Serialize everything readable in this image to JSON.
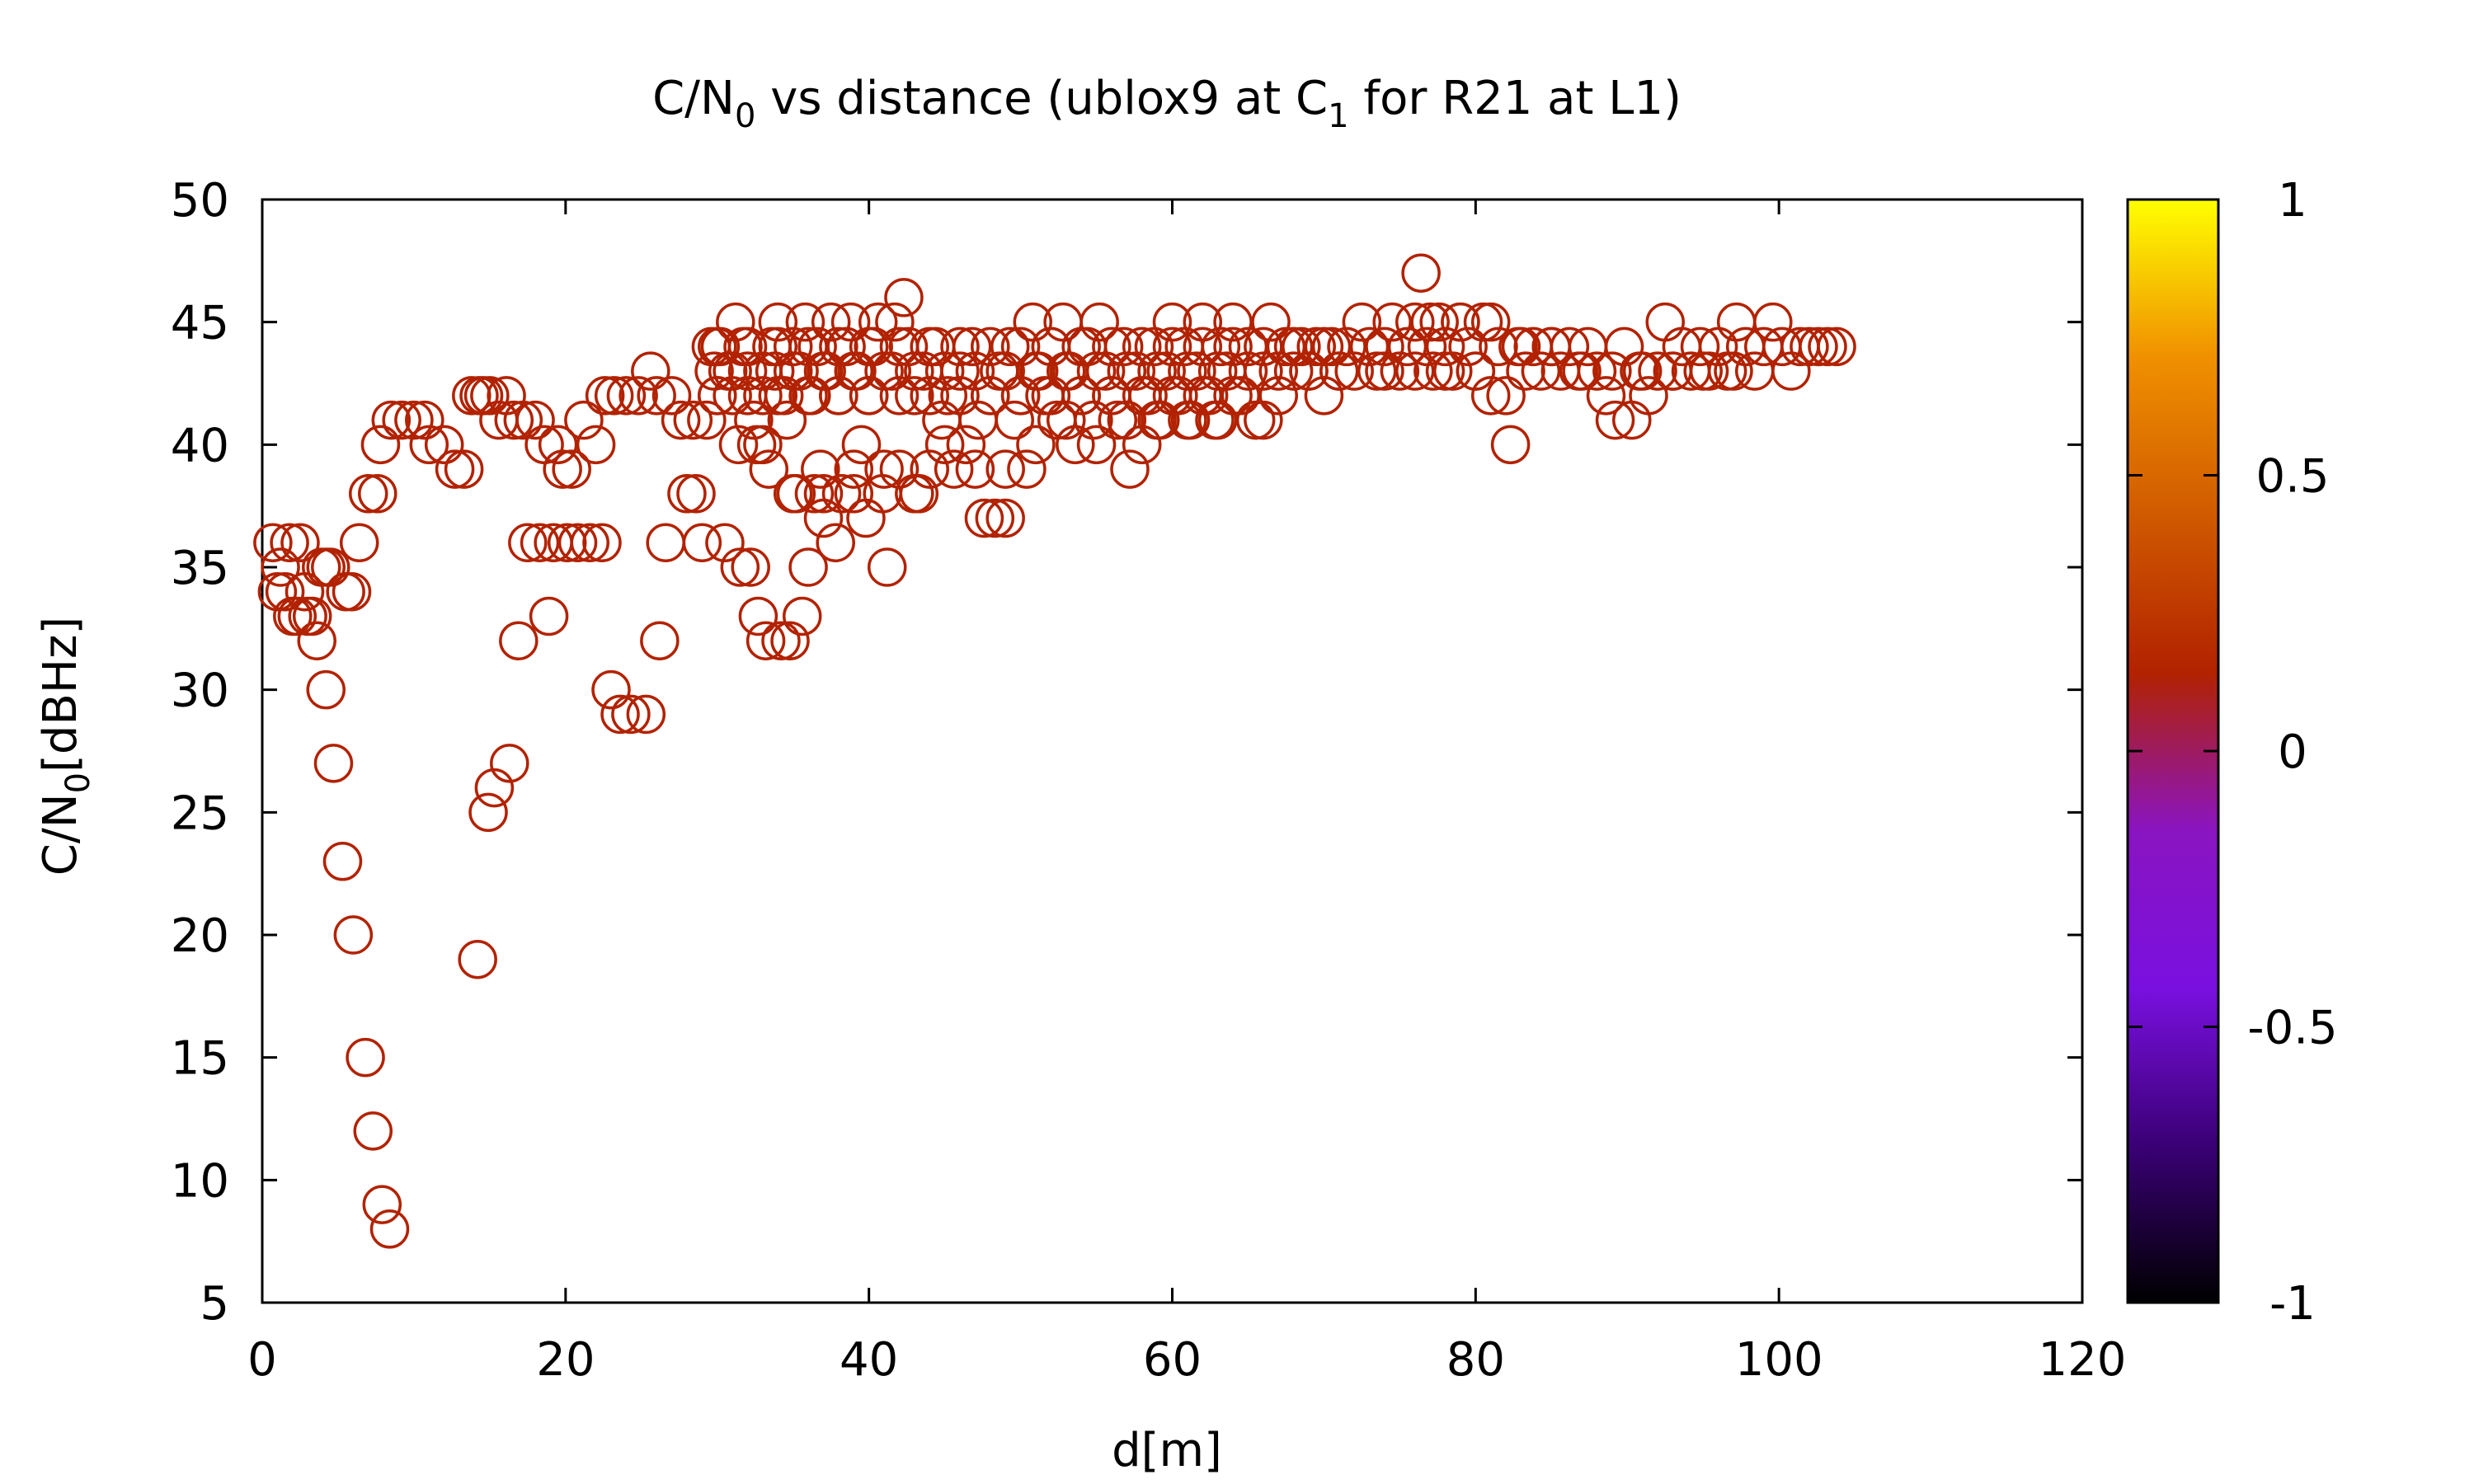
{
  "chart_data": {
    "type": "scatter",
    "title": {
      "main": "C/N",
      "sub0": "0",
      "mid": " vs distance (ublox9 at C",
      "sub1": "1",
      "end": " for R21 at L1)"
    },
    "xlabel": "d[m]",
    "ylabel": {
      "main": "C/N",
      "sub": "0",
      "end": "[dBHz]"
    },
    "xlim": [
      0,
      120
    ],
    "ylim": [
      5,
      50
    ],
    "xticks": [
      "0",
      "20",
      "40",
      "60",
      "80",
      "100",
      "120"
    ],
    "yticks": [
      "5",
      "10",
      "15",
      "20",
      "25",
      "30",
      "35",
      "40",
      "45",
      "50"
    ],
    "marker": "open-circle",
    "marker_color": "#b22200",
    "colorbar": {
      "range": [
        -1,
        1
      ],
      "ticks": [
        "-1",
        "-0.5",
        "0",
        "0.5",
        "1"
      ],
      "stops": [
        "#000000",
        "#3a0076",
        "#7a10e0",
        "#8a14c0",
        "#b22200",
        "#d05a00",
        "#f09000",
        "#ffff00"
      ]
    },
    "points": [
      [
        0.7,
        36
      ],
      [
        1.0,
        34
      ],
      [
        1.2,
        35
      ],
      [
        1.5,
        34
      ],
      [
        1.8,
        36
      ],
      [
        2.0,
        33
      ],
      [
        2.3,
        33
      ],
      [
        2.5,
        36
      ],
      [
        2.8,
        34
      ],
      [
        3.0,
        33
      ],
      [
        3.3,
        33
      ],
      [
        3.6,
        32
      ],
      [
        3.9,
        35
      ],
      [
        4.2,
        35
      ],
      [
        4.5,
        35
      ],
      [
        4.2,
        30
      ],
      [
        4.7,
        27
      ],
      [
        5.3,
        23
      ],
      [
        5.5,
        34
      ],
      [
        5.9,
        34
      ],
      [
        6.0,
        20
      ],
      [
        6.4,
        36
      ],
      [
        6.8,
        15
      ],
      [
        7.0,
        38
      ],
      [
        7.3,
        12
      ],
      [
        7.6,
        38
      ],
      [
        7.8,
        40
      ],
      [
        7.9,
        9
      ],
      [
        8.4,
        8
      ],
      [
        8.5,
        41
      ],
      [
        9.2,
        41
      ],
      [
        10,
        41
      ],
      [
        10.7,
        41
      ],
      [
        11,
        40
      ],
      [
        12,
        40
      ],
      [
        12.7,
        39
      ],
      [
        13.3,
        39
      ],
      [
        13.8,
        42
      ],
      [
        14.3,
        42
      ],
      [
        14.2,
        19
      ],
      [
        14.6,
        42
      ],
      [
        15.0,
        42
      ],
      [
        14.9,
        25
      ],
      [
        15.3,
        26
      ],
      [
        15.6,
        41
      ],
      [
        16.1,
        42
      ],
      [
        16.3,
        27
      ],
      [
        16.6,
        41
      ],
      [
        16.9,
        32
      ],
      [
        17.2,
        41
      ],
      [
        17.5,
        36
      ],
      [
        18.0,
        41
      ],
      [
        18.3,
        36
      ],
      [
        18.6,
        40
      ],
      [
        18.9,
        33
      ],
      [
        19.2,
        36
      ],
      [
        19.5,
        40
      ],
      [
        19.8,
        39
      ],
      [
        20.1,
        36
      ],
      [
        20.4,
        39
      ],
      [
        20.8,
        36
      ],
      [
        21.2,
        41
      ],
      [
        21.6,
        36
      ],
      [
        22.0,
        40
      ],
      [
        22.4,
        36
      ],
      [
        22.6,
        42
      ],
      [
        23.0,
        30
      ],
      [
        23.2,
        42
      ],
      [
        23.6,
        29
      ],
      [
        24.0,
        42
      ],
      [
        24.3,
        29
      ],
      [
        24.8,
        42
      ],
      [
        25.3,
        29
      ],
      [
        25.6,
        43
      ],
      [
        26.0,
        42
      ],
      [
        26.2,
        32
      ],
      [
        26.6,
        36
      ],
      [
        27.0,
        42
      ],
      [
        27.6,
        41
      ],
      [
        28.0,
        38
      ],
      [
        28.4,
        41
      ],
      [
        28.6,
        38
      ],
      [
        29.0,
        36
      ],
      [
        29.3,
        41
      ],
      [
        29.6,
        44
      ],
      [
        29.8,
        43
      ],
      [
        30.0,
        42
      ],
      [
        30.2,
        44
      ],
      [
        30.5,
        36
      ],
      [
        30.7,
        43
      ],
      [
        31.0,
        42
      ],
      [
        31.2,
        45
      ],
      [
        31.4,
        40
      ],
      [
        31.5,
        35
      ],
      [
        31.7,
        44
      ],
      [
        32.0,
        43
      ],
      [
        32.2,
        35
      ],
      [
        32.4,
        41
      ],
      [
        32.6,
        40
      ],
      [
        32.7,
        33
      ],
      [
        33.0,
        42
      ],
      [
        33.2,
        32
      ],
      [
        33.4,
        39
      ],
      [
        33.6,
        44
      ],
      [
        33.8,
        43
      ],
      [
        34.0,
        45
      ],
      [
        34.2,
        32
      ],
      [
        34.4,
        42
      ],
      [
        34.6,
        41
      ],
      [
        34.8,
        32
      ],
      [
        35.0,
        44
      ],
      [
        35.2,
        38
      ],
      [
        35.4,
        43
      ],
      [
        35.6,
        33
      ],
      [
        35.8,
        45
      ],
      [
        36.0,
        35
      ],
      [
        36.2,
        42
      ],
      [
        36.4,
        38
      ],
      [
        36.6,
        44
      ],
      [
        36.8,
        39
      ],
      [
        37.0,
        37
      ],
      [
        37.2,
        43
      ],
      [
        37.5,
        45
      ],
      [
        37.8,
        36
      ],
      [
        38.0,
        42
      ],
      [
        38.2,
        38
      ],
      [
        38.5,
        44
      ],
      [
        38.8,
        45
      ],
      [
        39.0,
        39
      ],
      [
        39.2,
        43
      ],
      [
        39.5,
        40
      ],
      [
        39.8,
        37
      ],
      [
        40.0,
        42
      ],
      [
        40.3,
        44
      ],
      [
        40.6,
        45
      ],
      [
        40.9,
        38
      ],
      [
        41.2,
        35
      ],
      [
        41.5,
        43
      ],
      [
        41.7,
        45
      ],
      [
        42.0,
        39
      ],
      [
        42.3,
        46
      ],
      [
        42.6,
        44
      ],
      [
        43.0,
        42
      ],
      [
        43.3,
        38
      ],
      [
        43.6,
        43
      ],
      [
        44.0,
        39
      ],
      [
        44.4,
        44
      ],
      [
        44.8,
        41
      ],
      [
        45.2,
        42
      ],
      [
        45.6,
        39
      ],
      [
        46.0,
        43
      ],
      [
        46.4,
        40
      ],
      [
        46.8,
        44
      ],
      [
        47.2,
        41
      ],
      [
        47.6,
        37
      ],
      [
        48.0,
        42
      ],
      [
        48.3,
        37
      ],
      [
        48.6,
        43
      ],
      [
        49.0,
        37
      ],
      [
        49.3,
        44
      ],
      [
        49.6,
        41
      ],
      [
        50.0,
        42
      ],
      [
        50.4,
        39
      ],
      [
        50.8,
        45
      ],
      [
        51.2,
        43
      ],
      [
        51.6,
        42
      ],
      [
        52.0,
        44
      ],
      [
        52.4,
        41
      ],
      [
        52.8,
        45
      ],
      [
        53.2,
        43
      ],
      [
        53.6,
        40
      ],
      [
        54.0,
        42
      ],
      [
        54.4,
        44
      ],
      [
        54.8,
        41
      ],
      [
        55.2,
        45
      ],
      [
        55.6,
        43
      ],
      [
        56.0,
        42
      ],
      [
        56.4,
        41
      ],
      [
        56.8,
        44
      ],
      [
        57.2,
        39
      ],
      [
        57.6,
        43
      ],
      [
        58.0,
        40
      ],
      [
        58.4,
        42
      ],
      [
        58.8,
        44
      ],
      [
        59.2,
        41
      ],
      [
        59.6,
        43
      ],
      [
        60.0,
        45
      ],
      [
        60.4,
        42
      ],
      [
        60.8,
        44
      ],
      [
        61.2,
        41
      ],
      [
        61.6,
        43
      ],
      [
        62.0,
        45
      ],
      [
        62.4,
        42
      ],
      [
        62.8,
        41
      ],
      [
        63.2,
        44
      ],
      [
        63.6,
        43
      ],
      [
        64.0,
        45
      ],
      [
        64.5,
        42
      ],
      [
        65.0,
        44
      ],
      [
        65.5,
        41
      ],
      [
        66.0,
        43
      ],
      [
        66.5,
        45
      ],
      [
        67.0,
        42
      ],
      [
        67.5,
        44
      ],
      [
        68.0,
        43
      ],
      [
        68.5,
        44
      ],
      [
        69.0,
        43
      ],
      [
        69.5,
        44
      ],
      [
        70.0,
        42
      ],
      [
        70.5,
        44
      ],
      [
        71.0,
        43
      ],
      [
        71.5,
        44
      ],
      [
        72.0,
        43
      ],
      [
        72.5,
        45
      ],
      [
        73.0,
        44
      ],
      [
        73.5,
        43
      ],
      [
        74.0,
        44
      ],
      [
        74.5,
        45
      ],
      [
        75.0,
        43
      ],
      [
        75.5,
        44
      ],
      [
        76.0,
        45
      ],
      [
        76.4,
        47
      ],
      [
        76.8,
        44
      ],
      [
        77.2,
        43
      ],
      [
        77.6,
        45
      ],
      [
        78.0,
        44
      ],
      [
        78.5,
        43
      ],
      [
        79.0,
        45
      ],
      [
        79.5,
        44
      ],
      [
        80.0,
        43
      ],
      [
        80.5,
        45
      ],
      [
        81.0,
        42
      ],
      [
        81.5,
        44
      ],
      [
        82.0,
        42
      ],
      [
        82.3,
        40
      ],
      [
        82.8,
        44
      ],
      [
        83.3,
        43
      ],
      [
        83.8,
        44
      ],
      [
        84.3,
        43
      ],
      [
        85.0,
        44
      ],
      [
        85.6,
        43
      ],
      [
        86.2,
        44
      ],
      [
        86.8,
        43
      ],
      [
        87.4,
        44
      ],
      [
        88.0,
        43
      ],
      [
        88.6,
        42
      ],
      [
        89.2,
        41
      ],
      [
        89.8,
        44
      ],
      [
        90.3,
        41
      ],
      [
        90.8,
        43
      ],
      [
        91.4,
        42
      ],
      [
        92.0,
        43
      ],
      [
        92.5,
        45
      ],
      [
        93.0,
        43
      ],
      [
        93.6,
        44
      ],
      [
        94.2,
        43
      ],
      [
        94.8,
        44
      ],
      [
        95.4,
        43
      ],
      [
        96.0,
        44
      ],
      [
        96.6,
        43
      ],
      [
        97.2,
        45
      ],
      [
        97.8,
        44
      ],
      [
        98.4,
        43
      ],
      [
        99.0,
        44
      ],
      [
        99.6,
        45
      ],
      [
        100.2,
        44
      ],
      [
        100.8,
        43
      ],
      [
        101.4,
        44
      ],
      [
        102.0,
        44
      ],
      [
        102.6,
        44
      ],
      [
        103.2,
        44
      ],
      [
        103.8,
        44
      ],
      [
        30,
        42
      ],
      [
        32,
        42
      ],
      [
        34,
        42
      ],
      [
        36,
        42
      ],
      [
        38,
        42
      ],
      [
        40,
        42
      ],
      [
        42,
        42
      ],
      [
        44,
        42
      ],
      [
        46,
        42
      ],
      [
        48,
        42
      ],
      [
        50,
        42
      ],
      [
        52,
        42
      ],
      [
        54,
        42
      ],
      [
        56,
        42
      ],
      [
        58,
        42
      ],
      [
        60,
        42
      ],
      [
        62,
        42
      ],
      [
        64,
        42
      ],
      [
        30,
        44
      ],
      [
        32,
        44
      ],
      [
        34,
        44
      ],
      [
        36,
        44
      ],
      [
        38,
        44
      ],
      [
        40,
        44
      ],
      [
        42,
        44
      ],
      [
        44,
        44
      ],
      [
        46,
        44
      ],
      [
        48,
        44
      ],
      [
        50,
        44
      ],
      [
        52,
        44
      ],
      [
        54,
        44
      ],
      [
        56,
        44
      ],
      [
        58,
        44
      ],
      [
        60,
        44
      ],
      [
        62,
        44
      ],
      [
        64,
        44
      ],
      [
        66,
        44
      ],
      [
        68,
        44
      ],
      [
        70,
        44
      ],
      [
        31,
        43
      ],
      [
        33,
        43
      ],
      [
        35,
        43
      ],
      [
        37,
        43
      ],
      [
        39,
        43
      ],
      [
        41,
        43
      ],
      [
        43,
        43
      ],
      [
        45,
        43
      ],
      [
        47,
        43
      ],
      [
        49,
        43
      ],
      [
        51,
        43
      ],
      [
        53,
        43
      ],
      [
        55,
        43
      ],
      [
        57,
        43
      ],
      [
        59,
        43
      ],
      [
        61,
        43
      ],
      [
        63,
        43
      ],
      [
        65,
        43
      ],
      [
        67,
        43
      ],
      [
        69,
        43
      ],
      [
        71,
        43
      ],
      [
        74,
        43
      ],
      [
        76,
        43
      ],
      [
        78,
        43
      ],
      [
        80,
        43
      ],
      [
        33,
        40
      ],
      [
        35,
        38
      ],
      [
        37,
        38
      ],
      [
        39,
        38
      ],
      [
        41,
        39
      ],
      [
        43,
        38
      ],
      [
        45,
        40
      ],
      [
        47,
        39
      ],
      [
        49,
        39
      ],
      [
        51,
        40
      ],
      [
        53,
        41
      ],
      [
        55,
        40
      ],
      [
        57,
        41
      ],
      [
        59,
        41
      ],
      [
        61,
        41
      ],
      [
        63,
        41
      ],
      [
        66,
        41
      ],
      [
        77,
        45
      ],
      [
        79,
        45
      ],
      [
        81,
        45
      ],
      [
        83,
        44
      ],
      [
        85,
        44
      ],
      [
        87,
        43
      ],
      [
        89,
        43
      ],
      [
        91,
        43
      ],
      [
        93,
        43
      ],
      [
        95,
        43
      ],
      [
        97,
        43
      ]
    ]
  }
}
